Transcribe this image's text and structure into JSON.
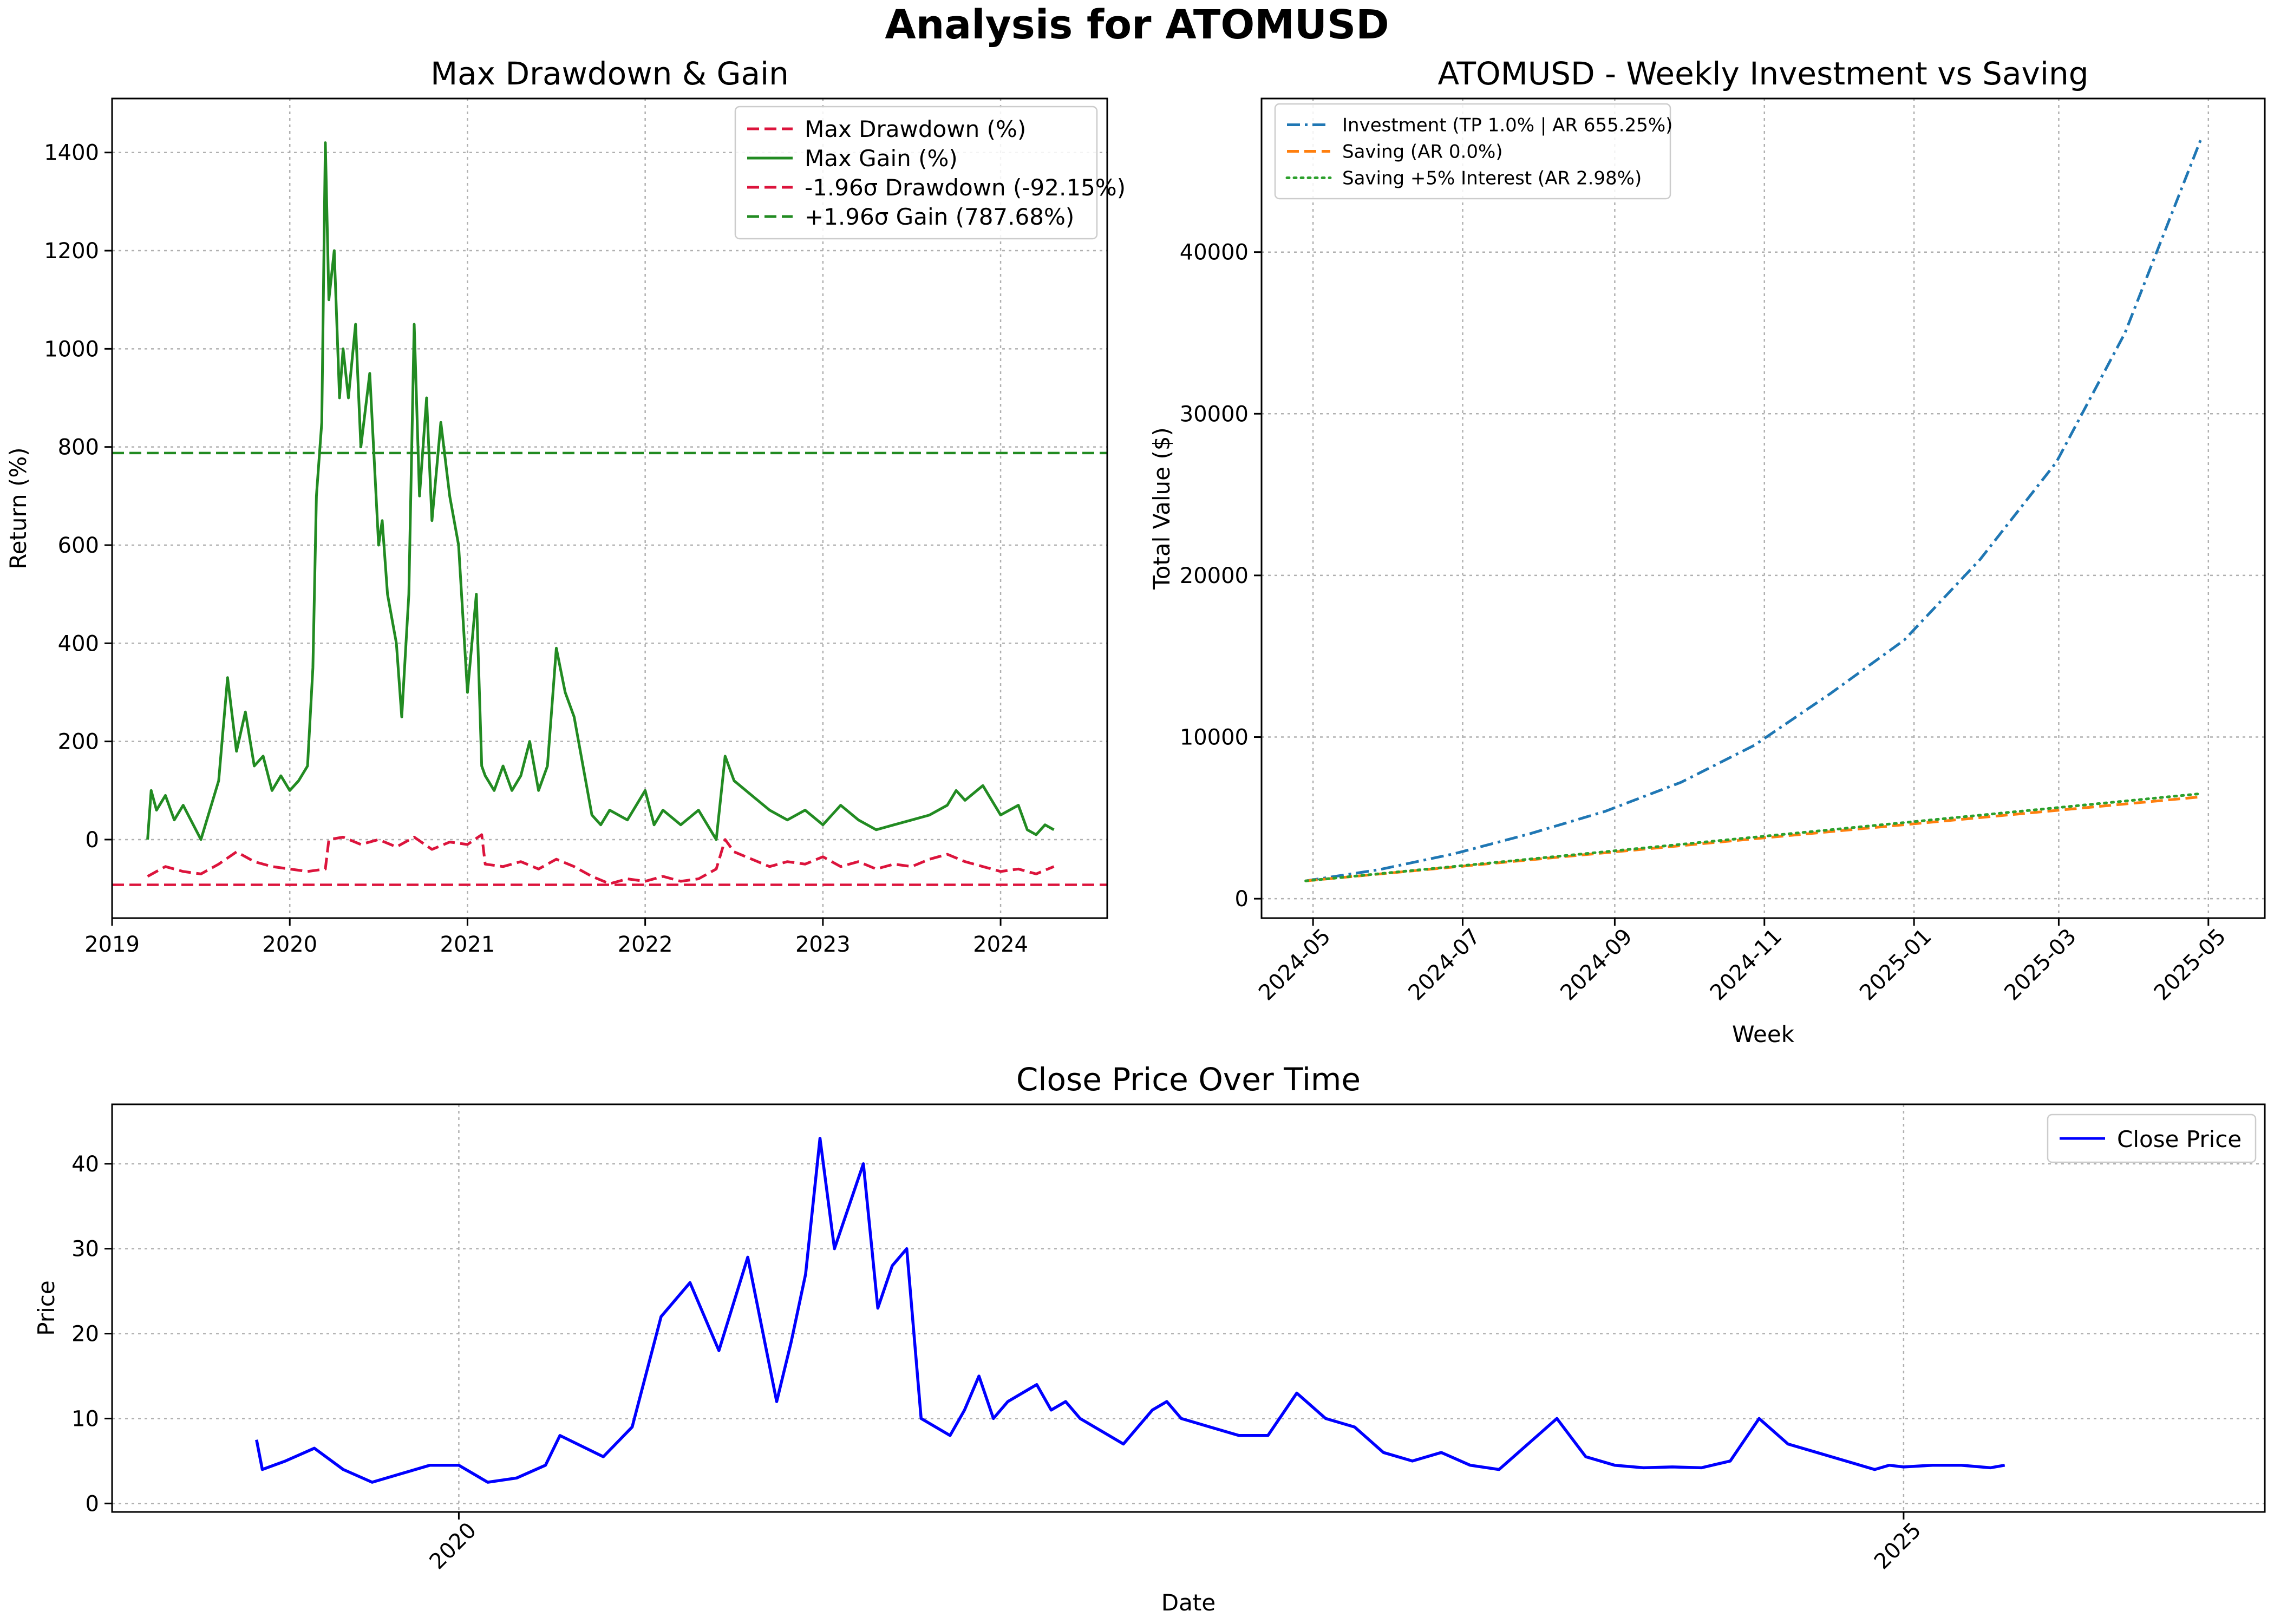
{
  "figure": {
    "title": "Analysis for ATOMUSD"
  },
  "colors": {
    "drawdown": "#dc143c",
    "gain": "#228b22",
    "investment": "#1f77b4",
    "saving": "#ff7f0e",
    "saving_interest": "#2ca02c",
    "close": "#0000ff"
  },
  "chart_data": [
    {
      "id": "drawdown_gain",
      "type": "line",
      "title": "Max Drawdown & Gain",
      "xlabel": "",
      "ylabel": "Return (%)",
      "xlim": [
        2019.0,
        2024.6
      ],
      "ylim": [
        -160,
        1510
      ],
      "xticks": [
        2019,
        2020,
        2021,
        2022,
        2023,
        2024
      ],
      "xtick_labels": [
        "2019",
        "2020",
        "2021",
        "2022",
        "2023",
        "2024"
      ],
      "yticks": [
        0,
        200,
        400,
        600,
        800,
        1000,
        1200,
        1400
      ],
      "ytick_labels": [
        "0",
        "200",
        "400",
        "600",
        "800",
        "1000",
        "1200",
        "1400"
      ],
      "grid": true,
      "legend_position": "top-right",
      "series": [
        {
          "name": "Max Drawdown (%)",
          "style": "dashed",
          "color": "#dc143c",
          "x": [
            2019.2,
            2019.3,
            2019.4,
            2019.5,
            2019.6,
            2019.7,
            2019.8,
            2019.9,
            2020.0,
            2020.1,
            2020.2,
            2020.22,
            2020.3,
            2020.4,
            2020.5,
            2020.6,
            2020.7,
            2020.8,
            2020.9,
            2021.0,
            2021.08,
            2021.1,
            2021.2,
            2021.3,
            2021.4,
            2021.5,
            2021.6,
            2021.7,
            2021.8,
            2021.9,
            2022.0,
            2022.1,
            2022.2,
            2022.3,
            2022.4,
            2022.45,
            2022.5,
            2022.6,
            2022.7,
            2022.8,
            2022.9,
            2023.0,
            2023.1,
            2023.2,
            2023.3,
            2023.4,
            2023.5,
            2023.6,
            2023.7,
            2023.8,
            2023.9,
            2024.0,
            2024.1,
            2024.2,
            2024.3
          ],
          "y": [
            -75,
            -55,
            -65,
            -70,
            -50,
            -25,
            -45,
            -55,
            -60,
            -65,
            -60,
            0,
            5,
            -10,
            0,
            -15,
            5,
            -20,
            -5,
            -10,
            10,
            -50,
            -55,
            -45,
            -60,
            -40,
            -55,
            -75,
            -90,
            -80,
            -85,
            -75,
            -85,
            -80,
            -60,
            0,
            -25,
            -40,
            -55,
            -45,
            -50,
            -35,
            -55,
            -45,
            -60,
            -50,
            -55,
            -40,
            -30,
            -45,
            -55,
            -65,
            -60,
            -70,
            -55
          ]
        },
        {
          "name": "Max Gain (%)",
          "style": "solid",
          "color": "#228b22",
          "x": [
            2019.2,
            2019.22,
            2019.25,
            2019.3,
            2019.35,
            2019.4,
            2019.5,
            2019.55,
            2019.6,
            2019.65,
            2019.7,
            2019.75,
            2019.8,
            2019.85,
            2019.9,
            2019.95,
            2020.0,
            2020.05,
            2020.1,
            2020.13,
            2020.15,
            2020.18,
            2020.2,
            2020.22,
            2020.25,
            2020.28,
            2020.3,
            2020.33,
            2020.37,
            2020.4,
            2020.45,
            2020.5,
            2020.52,
            2020.55,
            2020.6,
            2020.63,
            2020.67,
            2020.7,
            2020.73,
            2020.77,
            2020.8,
            2020.85,
            2020.9,
            2020.95,
            2021.0,
            2021.05,
            2021.08,
            2021.1,
            2021.15,
            2021.2,
            2021.25,
            2021.3,
            2021.35,
            2021.4,
            2021.45,
            2021.5,
            2021.55,
            2021.6,
            2021.65,
            2021.7,
            2021.75,
            2021.8,
            2021.9,
            2022.0,
            2022.05,
            2022.1,
            2022.2,
            2022.3,
            2022.4,
            2022.45,
            2022.5,
            2022.6,
            2022.7,
            2022.8,
            2022.9,
            2023.0,
            2023.1,
            2023.2,
            2023.3,
            2023.4,
            2023.5,
            2023.6,
            2023.7,
            2023.75,
            2023.8,
            2023.9,
            2024.0,
            2024.1,
            2024.15,
            2024.2,
            2024.25,
            2024.3
          ],
          "y": [
            0,
            100,
            60,
            90,
            40,
            70,
            0,
            60,
            120,
            330,
            180,
            260,
            150,
            170,
            100,
            130,
            100,
            120,
            150,
            350,
            700,
            850,
            1420,
            1100,
            1200,
            900,
            1000,
            900,
            1050,
            800,
            950,
            600,
            650,
            500,
            400,
            250,
            500,
            1050,
            700,
            900,
            650,
            850,
            700,
            600,
            300,
            500,
            150,
            130,
            100,
            150,
            100,
            130,
            200,
            100,
            150,
            390,
            300,
            250,
            150,
            50,
            30,
            60,
            40,
            100,
            30,
            60,
            30,
            60,
            0,
            170,
            120,
            90,
            60,
            40,
            60,
            30,
            70,
            40,
            20,
            30,
            40,
            50,
            70,
            100,
            80,
            110,
            50,
            70,
            20,
            10,
            30,
            20
          ]
        },
        {
          "name": "-1.96σ Drawdown (-92.15%)",
          "style": "hline-dashed",
          "color": "#dc143c",
          "value": -92.15
        },
        {
          "name": "+1.96σ Gain (787.68%)",
          "style": "hline-dashed",
          "color": "#228b22",
          "value": 787.68
        }
      ]
    },
    {
      "id": "weekly_investment",
      "type": "line",
      "title": "ATOMUSD - Weekly Investment vs Saving",
      "xlabel": "Week",
      "ylabel": "Total Value ($)",
      "xlim": [
        "2024-04-10",
        "2025-05-24"
      ],
      "ylim": [
        -1200,
        49500
      ],
      "xticks": [
        "2024-05-01",
        "2024-07-01",
        "2024-09-01",
        "2024-11-01",
        "2025-01-01",
        "2025-03-01",
        "2025-05-01"
      ],
      "xtick_labels": [
        "2024-05",
        "2024-07",
        "2024-09",
        "2024-11",
        "2025-01",
        "2025-03",
        "2025-05"
      ],
      "yticks": [
        0,
        10000,
        20000,
        30000,
        40000
      ],
      "ytick_labels": [
        "0",
        "10000",
        "20000",
        "30000",
        "40000"
      ],
      "grid": true,
      "legend_position": "top-left",
      "series": [
        {
          "name": "Investment (TP 1.0% | AR 655.25%)",
          "style": "dashdot",
          "color": "#1f77b4",
          "x": [
            "2024-04-28",
            "2024-05-28",
            "2024-06-28",
            "2024-07-28",
            "2024-08-28",
            "2024-09-28",
            "2024-10-28",
            "2024-11-28",
            "2024-12-28",
            "2025-01-28",
            "2025-02-28",
            "2025-03-28",
            "2025-04-28"
          ],
          "y": [
            1100,
            1800,
            2800,
            4000,
            5400,
            7200,
            9500,
            12700,
            16000,
            21000,
            27000,
            35000,
            47000
          ]
        },
        {
          "name": "Saving (AR 0.0%)",
          "style": "dashed",
          "color": "#ff7f0e",
          "x": [
            "2024-04-28",
            "2025-04-28"
          ],
          "y": [
            1100,
            6300
          ]
        },
        {
          "name": "Saving +5% Interest (AR 2.98%)",
          "style": "dotted",
          "color": "#2ca02c",
          "x": [
            "2024-04-28",
            "2025-04-28"
          ],
          "y": [
            1100,
            6500
          ]
        }
      ]
    },
    {
      "id": "close_price",
      "type": "line",
      "title": "Close Price Over Time",
      "xlabel": "Date",
      "ylabel": "Price",
      "xlim": [
        2018.8,
        2026.25
      ],
      "ylim": [
        -1,
        47
      ],
      "xticks": [
        2020,
        2025
      ],
      "xtick_labels": [
        "2020",
        "2025"
      ],
      "yticks": [
        0,
        10,
        20,
        30,
        40
      ],
      "ytick_labels": [
        "0",
        "10",
        "20",
        "30",
        "40"
      ],
      "grid": true,
      "legend_position": "top-right",
      "series": [
        {
          "name": "Close Price",
          "style": "solid",
          "color": "#0000ff",
          "x": [
            2019.3,
            2019.32,
            2019.4,
            2019.5,
            2019.6,
            2019.7,
            2019.8,
            2019.9,
            2020.0,
            2020.1,
            2020.2,
            2020.3,
            2020.35,
            2020.5,
            2020.6,
            2020.7,
            2020.8,
            2020.9,
            2021.0,
            2021.1,
            2021.15,
            2021.2,
            2021.25,
            2021.3,
            2021.4,
            2021.45,
            2021.5,
            2021.55,
            2021.6,
            2021.7,
            2021.75,
            2021.8,
            2021.85,
            2021.9,
            2022.0,
            2022.05,
            2022.1,
            2022.15,
            2022.2,
            2022.25,
            2022.3,
            2022.4,
            2022.45,
            2022.5,
            2022.6,
            2022.7,
            2022.8,
            2022.9,
            2023.0,
            2023.1,
            2023.2,
            2023.3,
            2023.4,
            2023.5,
            2023.6,
            2023.7,
            2023.8,
            2023.9,
            2024.0,
            2024.1,
            2024.2,
            2024.3,
            2024.4,
            2024.5,
            2024.6,
            2024.7,
            2024.8,
            2024.9,
            2024.95,
            2025.0,
            2025.1,
            2025.2,
            2025.3,
            2025.35
          ],
          "y": [
            7.5,
            4,
            5,
            6.5,
            4,
            2.5,
            3.5,
            4.5,
            4.5,
            2.5,
            3,
            4.5,
            8,
            5.5,
            9,
            22,
            26,
            18,
            29,
            12,
            19,
            27,
            43,
            30,
            40,
            23,
            28,
            30,
            10,
            8,
            11,
            15,
            10,
            12,
            14,
            11,
            12,
            10,
            9,
            8,
            7,
            11,
            12,
            10,
            9,
            8,
            8,
            13,
            10,
            9,
            6,
            5,
            6,
            4.5,
            4,
            7,
            10,
            5.5,
            4.5,
            4.2,
            4.3,
            4.2,
            5,
            10,
            7,
            6,
            5,
            4,
            4.5,
            4.3,
            4.5,
            4.5,
            4.2,
            4.5
          ]
        }
      ]
    }
  ]
}
